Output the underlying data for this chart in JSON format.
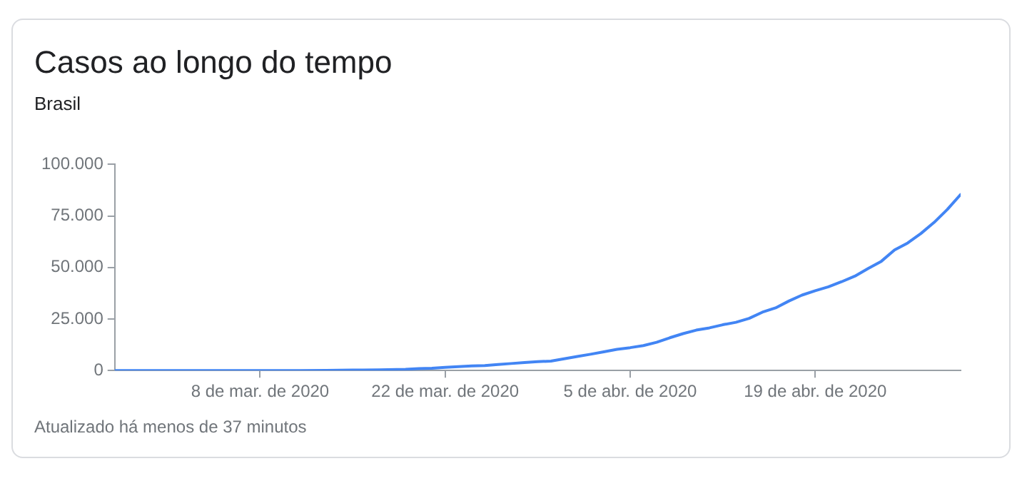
{
  "chart_data": {
    "type": "line",
    "title": "Casos ao longo do tempo",
    "subtitle": "Brasil",
    "annotations": [
      "Atualizado há menos de 37 minutos"
    ],
    "x": [
      "2020-02-26",
      "2020-02-28",
      "2020-03-01",
      "2020-03-03",
      "2020-03-05",
      "2020-03-07",
      "2020-03-09",
      "2020-03-11",
      "2020-03-13",
      "2020-03-15",
      "2020-03-17",
      "2020-03-19",
      "2020-03-20",
      "2020-03-21",
      "2020-03-22",
      "2020-03-23",
      "2020-03-24",
      "2020-03-25",
      "2020-03-26",
      "2020-03-27",
      "2020-03-28",
      "2020-03-29",
      "2020-03-30",
      "2020-03-31",
      "2020-04-01",
      "2020-04-02",
      "2020-04-03",
      "2020-04-04",
      "2020-04-05",
      "2020-04-06",
      "2020-04-07",
      "2020-04-08",
      "2020-04-09",
      "2020-04-10",
      "2020-04-11",
      "2020-04-12",
      "2020-04-13",
      "2020-04-14",
      "2020-04-15",
      "2020-04-16",
      "2020-04-17",
      "2020-04-18",
      "2020-04-19",
      "2020-04-20",
      "2020-04-21",
      "2020-04-22",
      "2020-04-23",
      "2020-04-24",
      "2020-04-25",
      "2020-04-26",
      "2020-04-27",
      "2020-04-28",
      "2020-04-29",
      "2020-04-30"
    ],
    "series": [
      {
        "color": "#4285f4",
        "values": [
          0,
          0,
          0,
          0,
          0,
          0,
          0,
          0,
          100,
          200,
          300,
          600,
          900,
          1100,
          1500,
          1900,
          2200,
          2400,
          2900,
          3400,
          3900,
          4300,
          4600,
          5700,
          6800,
          7900,
          9100,
          10300,
          11100,
          12100,
          13700,
          15900,
          17900,
          19600,
          20700,
          22200,
          23400,
          25300,
          28300,
          30400,
          33700,
          36600,
          38700,
          40600,
          43100,
          45800,
          49500,
          53000,
          58500,
          61900,
          66500,
          71900,
          78200,
          85400
        ]
      }
    ],
    "xlim": [
      "2020-02-26",
      "2020-04-30"
    ],
    "xticks": [
      {
        "value": "2020-03-08",
        "label": "8 de mar. de 2020"
      },
      {
        "value": "2020-03-22",
        "label": "22 de mar. de 2020"
      },
      {
        "value": "2020-04-05",
        "label": "5 de abr. de 2020"
      },
      {
        "value": "2020-04-19",
        "label": "19 de abr. de 2020"
      }
    ],
    "ylim": [
      0,
      100000
    ],
    "yticks": [
      {
        "value": 0,
        "label": "0"
      },
      {
        "value": 25000,
        "label": "25.000"
      },
      {
        "value": 50000,
        "label": "50.000"
      },
      {
        "value": 75000,
        "label": "75.000"
      },
      {
        "value": 100000,
        "label": "100.000"
      }
    ],
    "grid": false,
    "legend": false,
    "marker": "none",
    "line_style": "solid"
  }
}
